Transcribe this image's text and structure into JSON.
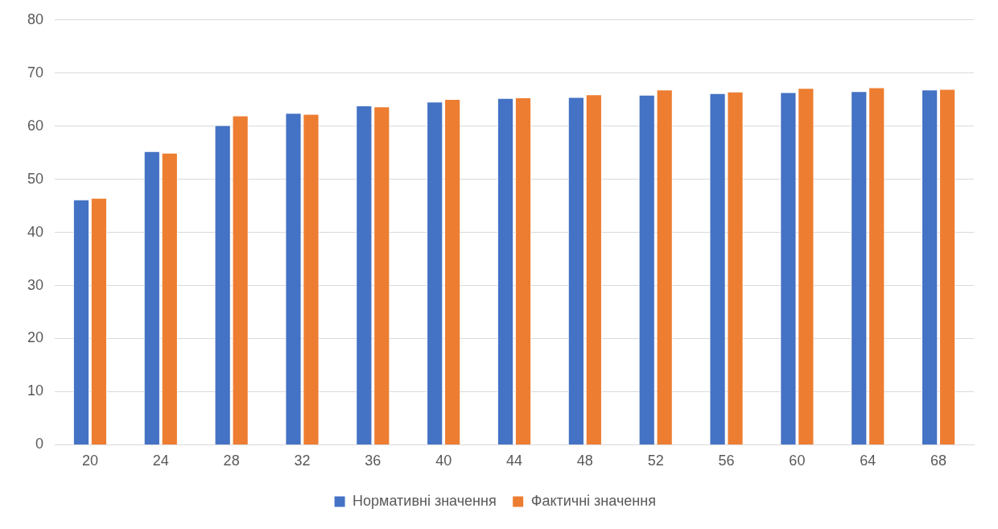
{
  "chart_data": {
    "type": "bar",
    "categories": [
      "20",
      "24",
      "28",
      "32",
      "36",
      "40",
      "44",
      "48",
      "52",
      "56",
      "60",
      "64",
      "68"
    ],
    "series": [
      {
        "name": "Нормативні значення",
        "color": "#4472c4",
        "values": [
          46.2,
          55.3,
          60.2,
          62.5,
          63.9,
          64.6,
          65.3,
          65.5,
          65.9,
          66.2,
          66.4,
          66.6,
          66.9
        ]
      },
      {
        "name": "Фактичні значення",
        "color": "#ed7d31",
        "values": [
          46.5,
          55.0,
          62.0,
          62.3,
          63.7,
          65.1,
          65.4,
          66.0,
          66.9,
          66.5,
          67.2,
          67.3,
          67.0
        ]
      }
    ],
    "ylim": [
      0,
      80
    ],
    "yticks": [
      0,
      10,
      20,
      30,
      40,
      50,
      60,
      70,
      80
    ],
    "grid": "y",
    "legend": "bottom"
  }
}
